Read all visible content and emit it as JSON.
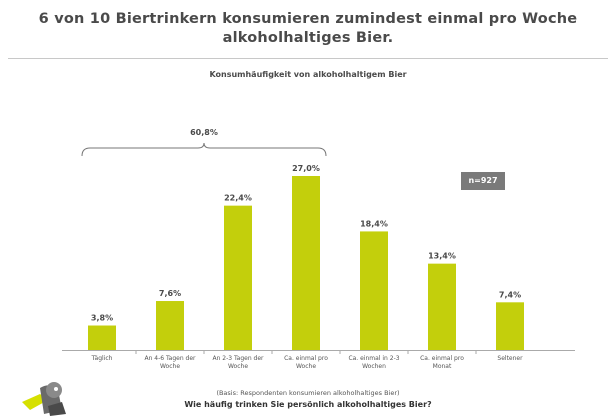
{
  "headline": {
    "line1": "6 von 10 Biertrinkern konsumieren zumindest einmal pro Woche",
    "line2": "alkoholhaltiges Bier."
  },
  "sample_size": "n=927",
  "footer": {
    "basis": "(Basis: Respondenten konsumieren alkoholhaltiges Bier)",
    "question": "Wie häufig trinken Sie persönlich alkoholhaltiges Bier?"
  },
  "colors": {
    "bar": "#c3cf0c",
    "text": "#4a4a4a"
  },
  "chart_data": {
    "type": "bar",
    "title": "Konsumhäufigkeit von alkoholhaltigem Bier",
    "categories": [
      [
        "Täglich"
      ],
      [
        "An 4-6 Tagen der",
        "Woche"
      ],
      [
        "An 2-3 Tagen der",
        "Woche"
      ],
      [
        "Ca. einmal pro",
        "Woche"
      ],
      [
        "Ca. einmal in 2-3",
        "Wochen"
      ],
      [
        "Ca. einmal pro",
        "Monat"
      ],
      [
        "Seltener"
      ]
    ],
    "values": [
      3.8,
      7.6,
      22.4,
      27.0,
      18.4,
      13.4,
      7.4
    ],
    "value_labels": [
      "3,8%",
      "7,6%",
      "22,4%",
      "27,0%",
      "18,4%",
      "13,4%",
      "7,4%"
    ],
    "group_bracket": {
      "label": "60,8%",
      "from_index": 0,
      "to_index": 3
    },
    "ylim": [
      0,
      27.0
    ]
  }
}
